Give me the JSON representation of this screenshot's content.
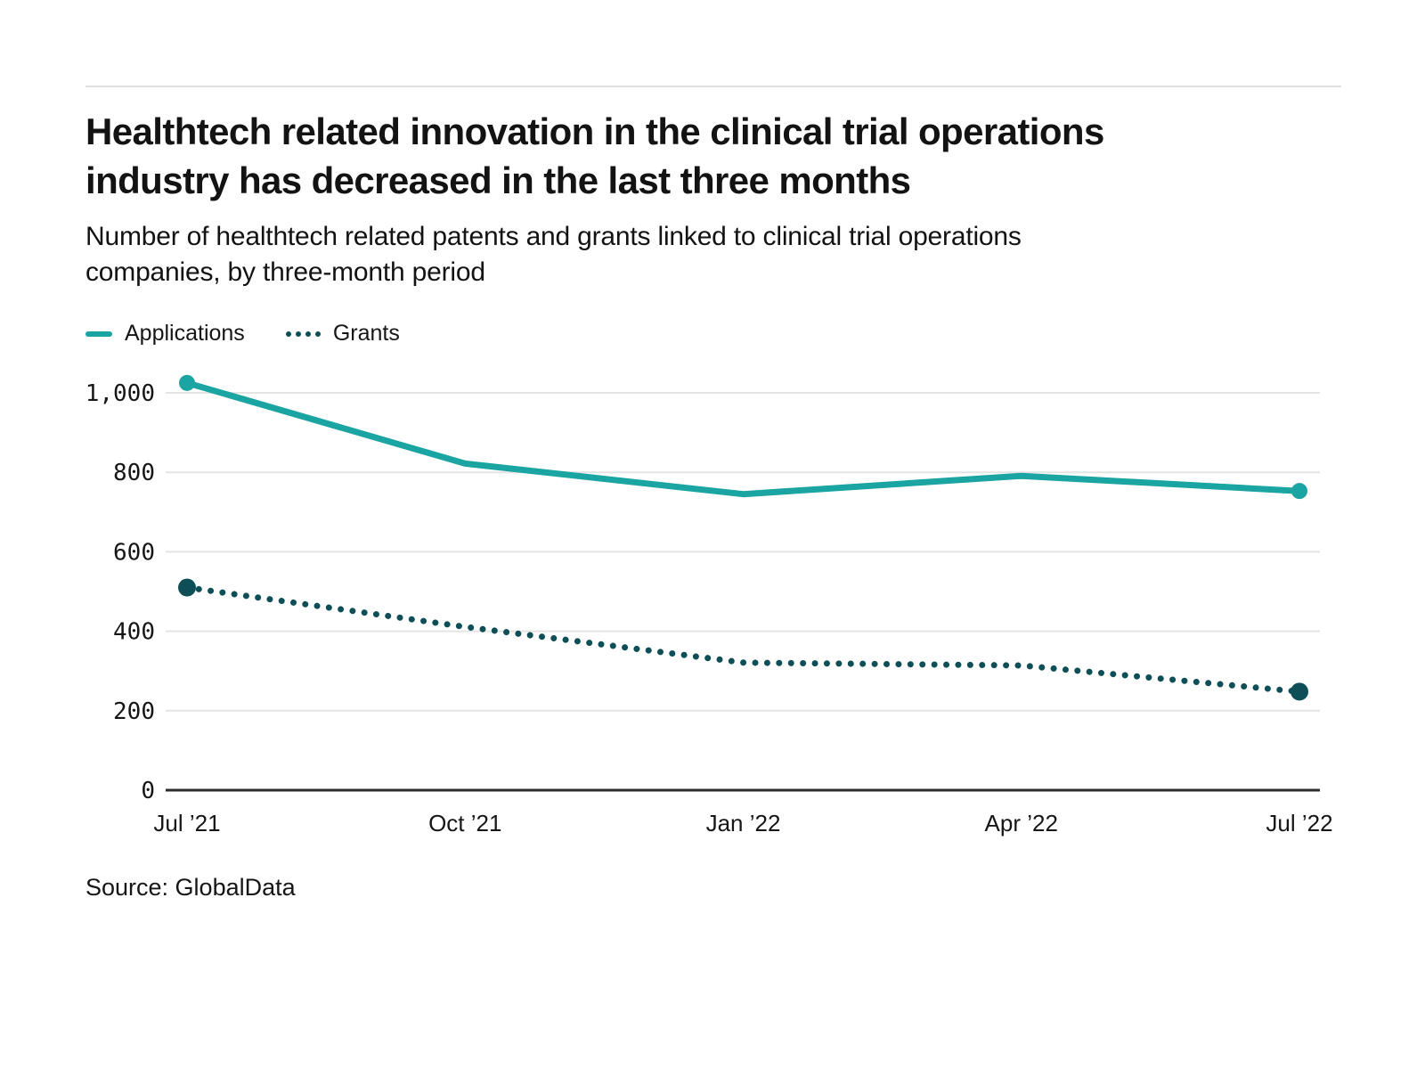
{
  "chart_data": {
    "type": "line",
    "title": "Healthtech related innovation in the clinical trial operations industry has decreased in the last three months",
    "subtitle": "Number of healthtech related patents and grants linked to clinical trial operations companies, by three-month period",
    "source": "Source: GlobalData",
    "x_labels": [
      "Jul ’21",
      "Oct ’21",
      "Jan ’22",
      "Apr ’22",
      "Jul ’22"
    ],
    "y_ticks": [
      {
        "value": 0,
        "label": "0"
      },
      {
        "value": 200,
        "label": "200"
      },
      {
        "value": 400,
        "label": "400"
      },
      {
        "value": 600,
        "label": "600"
      },
      {
        "value": 800,
        "label": "800"
      },
      {
        "value": 1000,
        "label": "1,000"
      }
    ],
    "ylim": [
      0,
      1060
    ],
    "grid": true,
    "legend_position": "top-left",
    "series": [
      {
        "name": "Applications",
        "line_style": "solid",
        "color": "#1AA4A2",
        "values": [
          1025,
          822,
          745,
          791,
          753
        ],
        "marker_point_indices": [
          0,
          4
        ]
      },
      {
        "name": "Grants",
        "line_style": "dotted",
        "color": "#0E4F57",
        "values": [
          510,
          411,
          321,
          314,
          248
        ],
        "marker_point_indices": [
          0,
          4
        ]
      }
    ],
    "styles": {
      "gridline_color": "#E4E4E4",
      "axis_color": "#2B2B2B",
      "text_color": "#161616"
    }
  }
}
